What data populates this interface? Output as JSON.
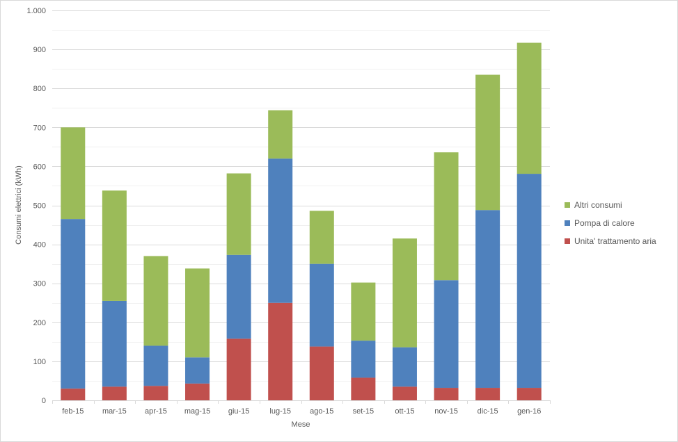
{
  "chart_data": {
    "type": "bar",
    "stacked": true,
    "title": "",
    "xlabel": "Mese",
    "ylabel": "Consumi elettrici (kWh)",
    "ylim": [
      0,
      1000
    ],
    "y_ticks": [
      0,
      100,
      200,
      300,
      400,
      500,
      600,
      700,
      800,
      900,
      1000
    ],
    "y_tick_labels": [
      "0",
      "100",
      "200",
      "300",
      "400",
      "500",
      "600",
      "700",
      "800",
      "900",
      "1.000"
    ],
    "grid": true,
    "legend_position": "right",
    "categories": [
      "feb-15",
      "mar-15",
      "apr-15",
      "mag-15",
      "giu-15",
      "lug-15",
      "ago-15",
      "set-15",
      "ott-15",
      "nov-15",
      "dic-15",
      "gen-16"
    ],
    "series": [
      {
        "name": "Unita' trattamento aria",
        "color": "#c0504d",
        "values": [
          30,
          35,
          37,
          43,
          158,
          250,
          138,
          58,
          35,
          32,
          32,
          32
        ]
      },
      {
        "name": "Pompa di calore",
        "color": "#4f81bd",
        "values": [
          435,
          220,
          103,
          67,
          215,
          370,
          212,
          95,
          101,
          276,
          456,
          549
        ]
      },
      {
        "name": "Altri consumi",
        "color": "#9bbb59",
        "values": [
          235,
          283,
          230,
          228,
          209,
          124,
          136,
          149,
          279,
          328,
          347,
          336
        ]
      }
    ]
  },
  "legend": {
    "items": [
      {
        "label": "Altri consumi",
        "color": "#9bbb59"
      },
      {
        "label": "Pompa di calore",
        "color": "#4f81bd"
      },
      {
        "label": "Unita' trattamento aria",
        "color": "#c0504d"
      }
    ]
  }
}
